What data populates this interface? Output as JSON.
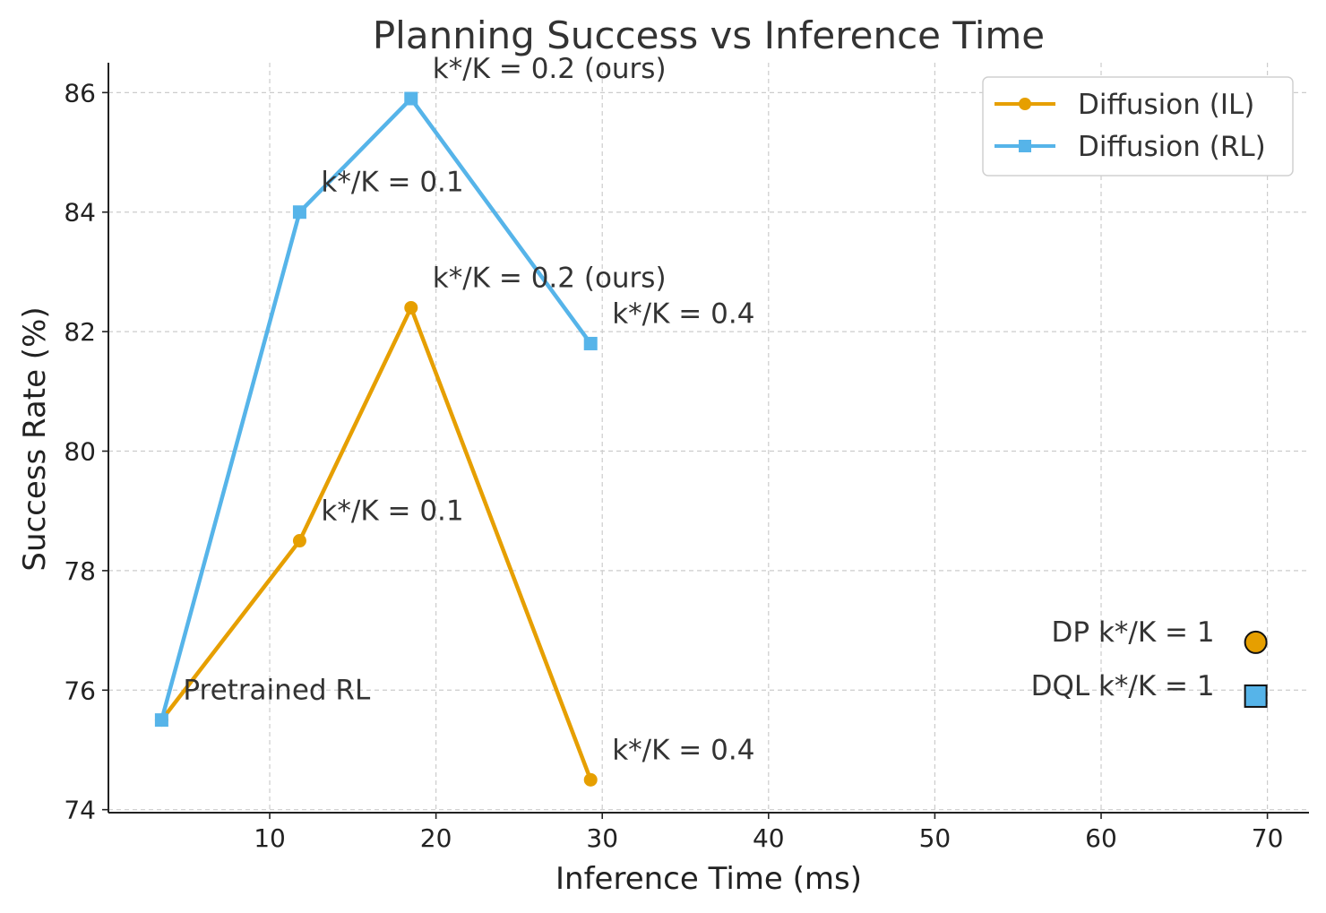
{
  "chart_data": {
    "type": "line",
    "title": "Planning Success vs Inference Time",
    "xlabel": "Inference Time (ms)",
    "ylabel": "Success Rate (%)",
    "xlim": [
      0.3,
      72.5
    ],
    "ylim": [
      73.95,
      86.5
    ],
    "xticks": [
      10,
      20,
      30,
      40,
      50,
      60,
      70
    ],
    "yticks": [
      74,
      76,
      78,
      80,
      82,
      84,
      86
    ],
    "grid": true,
    "legend_position": "top-right",
    "series": [
      {
        "name": "Diffusion (IL)",
        "color": "#E69F00",
        "marker": "circle",
        "x": [
          3.5,
          11.8,
          18.5,
          29.3
        ],
        "y": [
          75.5,
          78.5,
          82.4,
          74.5
        ],
        "labels": [
          "",
          "k*/K = 0.1",
          "k*/K = 0.2 (ours)",
          "k*/K = 0.4"
        ]
      },
      {
        "name": "Diffusion (RL)",
        "color": "#56B4E9",
        "marker": "square",
        "x": [
          3.5,
          11.8,
          18.5,
          29.3
        ],
        "y": [
          75.5,
          84.0,
          85.9,
          81.8
        ],
        "labels": [
          "Pretrained RL",
          "k*/K = 0.1",
          "k*/K = 0.2 (ours)",
          "k*/K = 0.4"
        ]
      }
    ],
    "standalone_points": [
      {
        "label": "DP k*/K = 1",
        "x": 69.3,
        "y": 76.8,
        "color": "#E69F00",
        "marker": "circle"
      },
      {
        "label": "DQL k*/K = 1",
        "x": 69.3,
        "y": 75.9,
        "color": "#56B4E9",
        "marker": "square"
      }
    ]
  }
}
